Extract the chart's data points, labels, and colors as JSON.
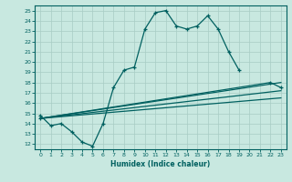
{
  "xlabel": "Humidex (Indice chaleur)",
  "xlim": [
    -0.5,
    23.5
  ],
  "ylim": [
    11.5,
    25.5
  ],
  "yticks": [
    12,
    13,
    14,
    15,
    16,
    17,
    18,
    19,
    20,
    21,
    22,
    23,
    24,
    25
  ],
  "xticks": [
    0,
    1,
    2,
    3,
    4,
    5,
    6,
    7,
    8,
    9,
    10,
    11,
    12,
    13,
    14,
    15,
    16,
    17,
    18,
    19,
    20,
    21,
    22,
    23
  ],
  "bg_color": "#c8e8e0",
  "line_color": "#006060",
  "grid_color": "#a8ccc4",
  "line1_x": [
    0,
    1,
    2,
    3,
    4,
    5,
    6,
    7,
    8,
    9,
    10,
    11,
    12,
    13,
    14,
    15,
    16,
    17,
    18,
    19
  ],
  "line1_y": [
    14.8,
    13.8,
    14.0,
    13.2,
    12.2,
    11.8,
    14.0,
    17.5,
    19.2,
    19.5,
    23.2,
    24.8,
    25.0,
    23.5,
    23.2,
    23.5,
    24.5,
    23.2,
    21.0,
    19.2
  ],
  "line2_x": [
    0,
    22,
    23
  ],
  "line2_y": [
    14.5,
    18.0,
    17.5
  ],
  "line3_x": [
    0,
    23
  ],
  "line3_y": [
    14.5,
    18.0
  ],
  "line4_x": [
    0,
    23
  ],
  "line4_y": [
    14.5,
    17.2
  ],
  "line5_x": [
    0,
    23
  ],
  "line5_y": [
    14.5,
    16.5
  ]
}
